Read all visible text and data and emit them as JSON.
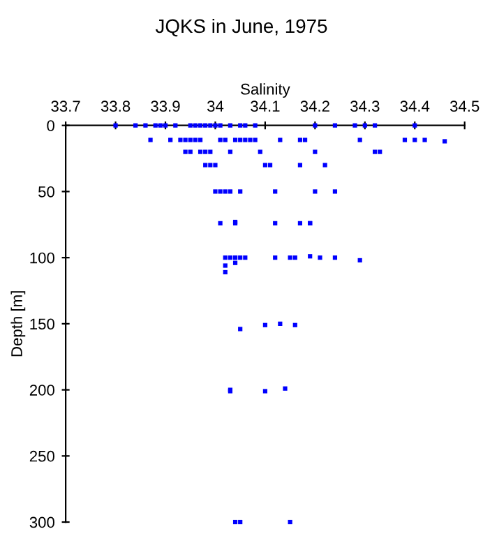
{
  "chart_data": {
    "type": "scatter",
    "title": "JQKS in June, 1975",
    "xlabel": "Salinity",
    "ylabel": "Depth [m]",
    "x": [
      33.8,
      33.84,
      33.86,
      33.88,
      33.89,
      33.9,
      33.92,
      33.95,
      33.96,
      33.97,
      33.98,
      33.99,
      34.0,
      34.01,
      34.03,
      34.05,
      34.06,
      34.08,
      34.2,
      34.24,
      34.28,
      34.3,
      34.32,
      34.4,
      33.87,
      33.91,
      33.93,
      33.94,
      33.95,
      33.96,
      33.97,
      34.01,
      34.02,
      34.04,
      34.05,
      34.06,
      34.07,
      34.08,
      34.13,
      34.17,
      34.18,
      34.29,
      34.38,
      34.4,
      34.42,
      34.46,
      33.94,
      33.95,
      33.97,
      33.98,
      33.99,
      34.03,
      34.09,
      34.2,
      34.32,
      34.33,
      33.98,
      33.99,
      34.0,
      34.1,
      34.11,
      34.17,
      34.22,
      34.0,
      34.01,
      34.02,
      34.03,
      34.05,
      34.12,
      34.2,
      34.24,
      34.01,
      34.04,
      34.04,
      34.12,
      34.17,
      34.19,
      34.19,
      34.02,
      34.03,
      34.04,
      34.04,
      34.05,
      34.06,
      34.12,
      34.15,
      34.16,
      34.19,
      34.21,
      34.24,
      34.29,
      34.02,
      34.04,
      34.02,
      34.05,
      34.1,
      34.13,
      34.16,
      34.03,
      34.03,
      34.1,
      34.14,
      34.04,
      34.05,
      34.15
    ],
    "series": [
      {
        "color": "#0000ff",
        "values": [
          0,
          0,
          0,
          0,
          0,
          0,
          0,
          0,
          0,
          0,
          0,
          0,
          0,
          0,
          0,
          0,
          0,
          0,
          0,
          0,
          0,
          0,
          0,
          0,
          11,
          11,
          11,
          11,
          11,
          11,
          11,
          11,
          11,
          11,
          11,
          11,
          11,
          11,
          11,
          11,
          11,
          11,
          11,
          11,
          11,
          12,
          20,
          20,
          20,
          20,
          20,
          20,
          20,
          20,
          20,
          20,
          30,
          30,
          30,
          30,
          30,
          30,
          30,
          50,
          50,
          50,
          50,
          50,
          50,
          50,
          50,
          74,
          73,
          74,
          74,
          74,
          74,
          74,
          100,
          100,
          100,
          100,
          100,
          100,
          100,
          100,
          100,
          99,
          100,
          100,
          102,
          106,
          104,
          111,
          154,
          151,
          150,
          151,
          201,
          200,
          201,
          199,
          300,
          300,
          300
        ]
      }
    ],
    "xlim": [
      33.7,
      34.5
    ],
    "xticks": [
      33.7,
      33.8,
      33.9,
      34,
      34.1,
      34.2,
      34.3,
      34.4,
      34.5
    ],
    "ylim": [
      300,
      0
    ],
    "yticks": [
      0,
      50,
      100,
      150,
      200,
      250,
      300
    ],
    "marker": "square",
    "grid": false,
    "legend": false
  }
}
